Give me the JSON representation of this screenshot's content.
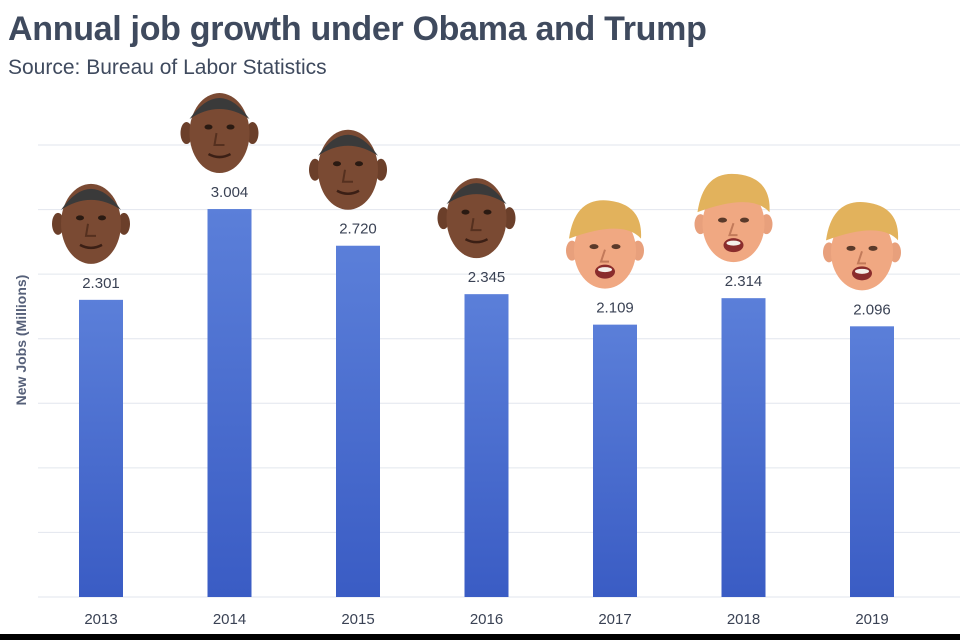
{
  "chart_data": {
    "type": "bar",
    "title": "Annual job growth under Obama and Trump",
    "subtitle": "Source: Bureau of Labor Statistics",
    "xlabel": "",
    "ylabel": "New Jobs (Millions)",
    "categories": [
      "2013",
      "2014",
      "2015",
      "2016",
      "2017",
      "2018",
      "2019"
    ],
    "values": [
      2.301,
      3.004,
      2.72,
      2.345,
      2.109,
      2.314,
      2.096
    ],
    "value_labels": [
      "2.301",
      "3.004",
      "2.720",
      "2.345",
      "2.109",
      "2.314",
      "2.096"
    ],
    "ylim": [
      0,
      3.5
    ],
    "grid": true,
    "bar_color": "#4a6fd0",
    "face_images": [
      "obama",
      "obama",
      "obama",
      "obama",
      "trump",
      "trump",
      "trump"
    ]
  }
}
